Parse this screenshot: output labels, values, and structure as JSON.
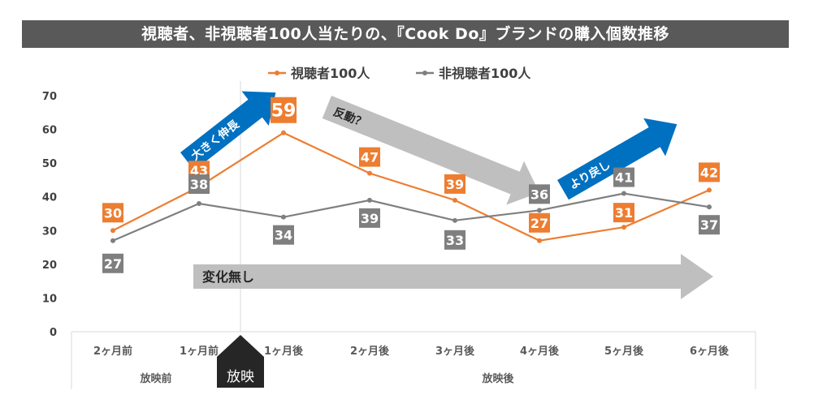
{
  "chart_data": {
    "type": "line",
    "title": "視聴者、非視聴者100人当たりの、『Cook Do』ブランドの購入個数推移",
    "categories": [
      "2ヶ月前",
      "1ヶ月前",
      "1ヶ月後",
      "2ヶ月後",
      "3ヶ月後",
      "4ヶ月後",
      "5ヶ月後",
      "6ヶ月後"
    ],
    "period_labels": {
      "before": "放映前",
      "broadcast": "放映",
      "after": "放映後"
    },
    "series": [
      {
        "name": "視聴者100人",
        "color": "#ED7D31",
        "values": [
          30,
          43,
          59,
          47,
          39,
          27,
          31,
          42
        ]
      },
      {
        "name": "非視聴者100人",
        "color": "#7F7F7F",
        "values": [
          27,
          38,
          34,
          39,
          33,
          36,
          41,
          37
        ]
      }
    ],
    "ylim": [
      0,
      70
    ],
    "yticks": [
      0,
      10,
      20,
      30,
      40,
      50,
      60,
      70
    ],
    "legend_position": "top",
    "annotations": {
      "growth": "大きく伸長",
      "rebound": "反動？",
      "recovery": "より戻し",
      "no_change": "変化無し"
    },
    "colors": {
      "blue_arrow": "#0070C0",
      "gray_arrow": "#BFBFBF",
      "title_bg": "#595959"
    }
  }
}
